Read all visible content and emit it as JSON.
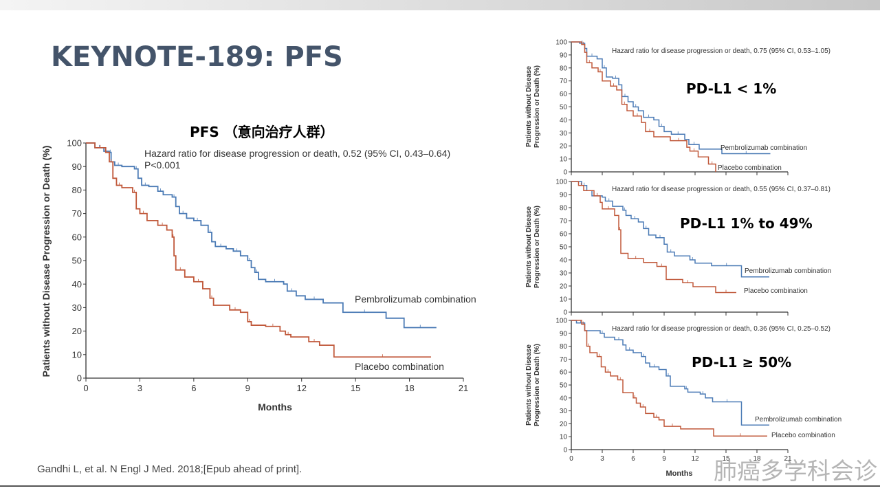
{
  "slide": {
    "title": "KEYNOTE-189: PFS",
    "chart_title": "PFS （意向治疗人群）",
    "citation": "Gandhi L, et al. N Engl J Med. 2018;[Epub ahead of print].",
    "watermark": "肺癌多学科会诊",
    "colors": {
      "pembrolizumab": "#4a7ab5",
      "placebo": "#c0583a",
      "title": "#44546a"
    }
  },
  "chart_data": [
    {
      "type": "line",
      "step": true,
      "title": "",
      "annotation": "Hazard ratio for disease progression or death, 0.52 (95% CI, 0.43–0.64)",
      "pvalue": "P<0.001",
      "xlabel": "Months",
      "ylabel": "Patients without Disease Progression or Death (%)",
      "xlim": [
        0,
        21
      ],
      "ylim": [
        0,
        100
      ],
      "xticks": [
        0,
        3,
        6,
        9,
        12,
        15,
        18,
        21
      ],
      "yticks": [
        0,
        10,
        20,
        30,
        40,
        50,
        60,
        70,
        80,
        90,
        100
      ],
      "series": [
        {
          "name": "Pembrolizumab combination",
          "color": "#4a7ab5",
          "x": [
            0,
            0.5,
            1,
            1.3,
            1.4,
            1.6,
            2,
            2.7,
            2.9,
            3.1,
            3.5,
            4,
            4.3,
            4.8,
            5,
            5.2,
            5.6,
            6,
            6.4,
            6.8,
            7,
            7.2,
            7.8,
            8.2,
            8.6,
            9,
            9.2,
            9.4,
            9.6,
            10,
            11,
            11.2,
            11.7,
            12.2,
            13.2,
            14.3,
            16.7,
            17.7,
            19.5
          ],
          "y": [
            100,
            98,
            96.5,
            96,
            92,
            90.5,
            90,
            89,
            85,
            82,
            81.5,
            79.5,
            78,
            77,
            73,
            70,
            68,
            67,
            65,
            62,
            58,
            56,
            55,
            54,
            52,
            50,
            47,
            45,
            42,
            41,
            40,
            37,
            35,
            33.5,
            32,
            28,
            25.5,
            21.5,
            21.5
          ]
        },
        {
          "name": "Placebo combination",
          "color": "#c0583a",
          "x": [
            0,
            0.5,
            1.1,
            1.3,
            1.5,
            1.7,
            2,
            2.6,
            2.8,
            3,
            3.4,
            4,
            4.5,
            4.8,
            4.9,
            5,
            5.5,
            6,
            6.5,
            6.9,
            7.1,
            8,
            8.6,
            9,
            9.2,
            10,
            10.8,
            11.1,
            11.4,
            12.4,
            13,
            13.8,
            19.2
          ],
          "y": [
            100,
            98,
            96,
            92,
            85,
            82,
            81,
            79,
            72,
            70,
            67,
            65,
            63,
            60,
            52,
            46,
            43,
            41,
            38,
            34,
            31,
            29,
            28,
            24,
            22.5,
            22,
            20,
            18.5,
            17.5,
            15.5,
            14,
            9,
            9
          ]
        }
      ]
    },
    {
      "type": "line",
      "step": true,
      "title": "PD-L1 < 1%",
      "annotation": "Hazard ratio for disease progression or death, 0.75 (95% CI, 0.53–1.05)",
      "ylabel": "Patients without Disease Progression or Death (%)",
      "xlim": [
        0,
        21
      ],
      "ylim": [
        0,
        100
      ],
      "yticks": [
        0,
        10,
        20,
        30,
        40,
        50,
        60,
        70,
        80,
        90,
        100
      ],
      "series": [
        {
          "name": "Pembrolizumab combination",
          "color": "#4a7ab5",
          "x": [
            0,
            0.8,
            1.3,
            1.5,
            2.5,
            3,
            3.4,
            4,
            4.6,
            4.9,
            5.5,
            6,
            6.5,
            7,
            8,
            8.5,
            9,
            9.7,
            11,
            11.4,
            12.4,
            14.6,
            19.3
          ],
          "y": [
            100,
            99,
            95,
            89,
            87,
            80,
            73,
            72,
            67,
            58,
            54,
            50,
            47,
            42,
            40,
            35,
            31,
            29,
            25,
            21,
            17.5,
            14,
            14
          ]
        },
        {
          "name": "Placebo combination",
          "color": "#c0583a",
          "x": [
            0,
            1,
            1.3,
            1.5,
            2,
            2.6,
            3,
            3.8,
            4.4,
            4.9,
            5.4,
            6,
            6.8,
            7.2,
            8,
            9.6,
            11.2,
            11.5,
            12.3,
            13.3,
            14
          ],
          "y": [
            100,
            98,
            92,
            84,
            80,
            77,
            70,
            66,
            63,
            52,
            47,
            43,
            38,
            31,
            27,
            24,
            19,
            16,
            11.5,
            6,
            0
          ]
        }
      ]
    },
    {
      "type": "line",
      "step": true,
      "title": "PD-L1 1% to 49%",
      "annotation": "Hazard ratio for disease progression or death, 0.55 (95% CI, 0.37–0.81)",
      "ylabel": "Patients without Disease Progression or Death (%)",
      "xlim": [
        0,
        21
      ],
      "ylim": [
        0,
        100
      ],
      "yticks": [
        0,
        10,
        20,
        30,
        40,
        50,
        60,
        70,
        80,
        90,
        100
      ],
      "series": [
        {
          "name": "Pembrolizumab combination",
          "color": "#4a7ab5",
          "x": [
            0,
            1,
            1.5,
            2,
            3,
            3.3,
            4,
            5,
            5.3,
            5.8,
            6.5,
            7,
            7.5,
            8.2,
            9,
            9.3,
            10,
            11.5,
            12,
            13.6,
            16.5,
            19.2
          ],
          "y": [
            100,
            97,
            93,
            89,
            88,
            85,
            81,
            78,
            74,
            71.5,
            69,
            64,
            59,
            57,
            52,
            46,
            43,
            40,
            37.5,
            35.5,
            27,
            27
          ]
        },
        {
          "name": "Placebo combination",
          "color": "#c0583a",
          "x": [
            0,
            0.7,
            1.2,
            2.2,
            2.8,
            3,
            4.2,
            4.6,
            4.8,
            5.5,
            7,
            8.3,
            9.2,
            10.8,
            11.8,
            14,
            16
          ],
          "y": [
            100,
            97,
            93,
            89,
            84,
            79,
            74,
            63,
            45,
            41,
            38,
            35,
            25,
            22.5,
            19.5,
            15,
            15
          ]
        }
      ]
    },
    {
      "type": "line",
      "step": true,
      "title": "PD-L1 ≥ 50%",
      "annotation": "Hazard ratio for disease progression or death, 0.36 (95% CI, 0.25–0.52)",
      "xlabel": "Months",
      "ylabel": "Patients without Disease Progression or Death (%)",
      "xlim": [
        0,
        21
      ],
      "ylim": [
        0,
        100
      ],
      "xticks": [
        0,
        3,
        6,
        9,
        12,
        15,
        18,
        21
      ],
      "yticks": [
        0,
        10,
        20,
        30,
        40,
        50,
        60,
        70,
        80,
        90,
        100
      ],
      "series": [
        {
          "name": "Pembrolizumab combination",
          "color": "#4a7ab5",
          "x": [
            0,
            0.5,
            1.3,
            2.8,
            3.2,
            4.2,
            5,
            5.3,
            6,
            6.8,
            7.2,
            7.6,
            8.5,
            9.2,
            9.6,
            11,
            11.3,
            12.5,
            13,
            13.7,
            16.5,
            19.2
          ],
          "y": [
            100,
            98,
            92,
            90,
            87,
            85,
            81,
            77,
            75,
            72,
            67,
            64,
            62,
            57,
            49,
            47,
            44.5,
            43,
            40,
            37,
            19,
            19
          ]
        },
        {
          "name": "Placebo combination",
          "color": "#c0583a",
          "x": [
            0,
            1,
            1.3,
            1.5,
            1.8,
            2.5,
            2.9,
            3.3,
            3.8,
            4.5,
            5,
            6,
            6.3,
            6.7,
            7.2,
            8,
            8.5,
            9,
            10.6,
            13.8,
            19
          ],
          "y": [
            100,
            97,
            92,
            80,
            75,
            72,
            64,
            60,
            57,
            54,
            44,
            40,
            36,
            33,
            28,
            25,
            23,
            18,
            16,
            10.5,
            10.5
          ]
        }
      ]
    }
  ]
}
